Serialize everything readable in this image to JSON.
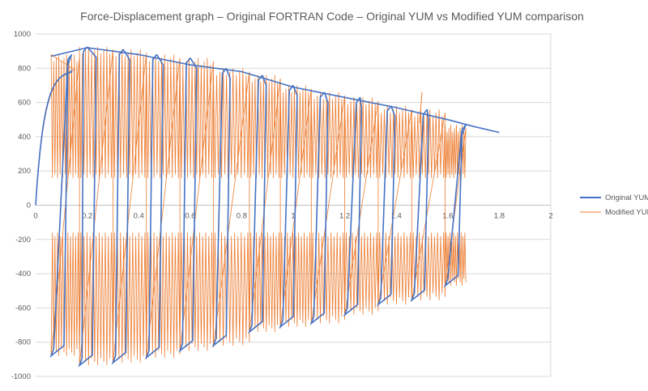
{
  "chart_data": {
    "type": "line",
    "title": "Force-Displacement graph – Original FORTRAN Code – Original YUM vs Modified YUM comparison",
    "xlim": [
      0,
      2
    ],
    "ylim": [
      -1000,
      1000
    ],
    "x_ticks": [
      0,
      0.2,
      0.4,
      0.6,
      0.8,
      1,
      1.2,
      1.4,
      1.6,
      1.8,
      2
    ],
    "x_tick_labels": [
      "0",
      "0.2",
      "0.4",
      "0.6",
      "0.8",
      "1",
      "1.2",
      "1.4",
      "1.6",
      "1.8",
      "2"
    ],
    "y_ticks": [
      -1000,
      -800,
      -600,
      -400,
      -200,
      0,
      200,
      400,
      600,
      800,
      1000
    ],
    "y_tick_labels": [
      "-1000",
      "-800",
      "-600",
      "-400",
      "-200",
      "0",
      "200",
      "400",
      "600",
      "800",
      "1000"
    ],
    "grid": true,
    "legend_position": "right",
    "series": [
      {
        "name": "Original YUM",
        "color": "#4472c4",
        "cycles": [
          {
            "x_pos": 0.14,
            "x_neg": 0.06,
            "pos_top": 880,
            "neg_bottom": -880
          },
          {
            "x_pos": 0.2,
            "x_neg": 0.17,
            "pos_top": 925,
            "neg_bottom": -935
          },
          {
            "x_pos": 0.34,
            "x_neg": 0.3,
            "pos_top": 910,
            "neg_bottom": -920
          },
          {
            "x_pos": 0.47,
            "x_neg": 0.43,
            "pos_top": 880,
            "neg_bottom": -890
          },
          {
            "x_pos": 0.6,
            "x_neg": 0.56,
            "pos_top": 860,
            "neg_bottom": -850
          },
          {
            "x_pos": 0.74,
            "x_neg": 0.69,
            "pos_top": 800,
            "neg_bottom": -820
          },
          {
            "x_pos": 0.88,
            "x_neg": 0.83,
            "pos_top": 760,
            "neg_bottom": -740
          },
          {
            "x_pos": 1.0,
            "x_neg": 0.95,
            "pos_top": 700,
            "neg_bottom": -710
          },
          {
            "x_pos": 1.12,
            "x_neg": 1.07,
            "pos_top": 660,
            "neg_bottom": -690
          },
          {
            "x_pos": 1.26,
            "x_neg": 1.2,
            "pos_top": 630,
            "neg_bottom": -640
          },
          {
            "x_pos": 1.38,
            "x_neg": 1.33,
            "pos_top": 580,
            "neg_bottom": -580
          },
          {
            "x_pos": 1.52,
            "x_neg": 1.46,
            "pos_top": 560,
            "neg_bottom": -555
          },
          {
            "x_pos": 1.67,
            "x_neg": 1.59,
            "pos_top": 470,
            "neg_bottom": -470
          }
        ],
        "envelope": [
          [
            0.06,
            870
          ],
          [
            0.2,
            920
          ],
          [
            0.4,
            880
          ],
          [
            0.6,
            820
          ],
          [
            0.8,
            780
          ],
          [
            1.0,
            690
          ],
          [
            1.2,
            630
          ],
          [
            1.4,
            570
          ],
          [
            1.6,
            500
          ],
          [
            1.7,
            460
          ],
          [
            1.8,
            425
          ]
        ]
      },
      {
        "name": "Modified YUM",
        "color": "#ed7d31",
        "cycles_ref": "Original YUM",
        "bands": {
          "upper_min": 150,
          "lower_max": -150
        }
      }
    ]
  }
}
